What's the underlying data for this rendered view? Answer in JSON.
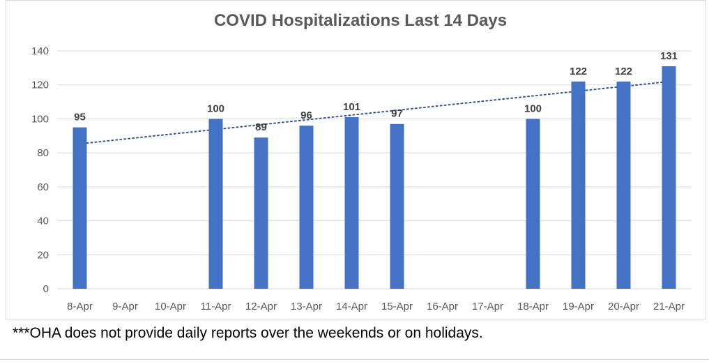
{
  "chart_data": {
    "type": "bar",
    "title": "COVID Hospitalizations Last 14 Days",
    "categories": [
      "8-Apr",
      "9-Apr",
      "10-Apr",
      "11-Apr",
      "12-Apr",
      "13-Apr",
      "14-Apr",
      "15-Apr",
      "16-Apr",
      "17-Apr",
      "18-Apr",
      "19-Apr",
      "20-Apr",
      "21-Apr"
    ],
    "series": [
      {
        "name": "Hospitalizations",
        "values": [
          95,
          null,
          null,
          100,
          89,
          96,
          101,
          97,
          null,
          null,
          100,
          122,
          122,
          131
        ]
      }
    ],
    "ylim": [
      0,
      140
    ],
    "yticks": [
      0,
      20,
      40,
      60,
      80,
      100,
      120,
      140
    ],
    "xlabel": "",
    "ylabel": "",
    "grid": true,
    "trendline": {
      "type": "linear",
      "style": "dotted"
    },
    "colors": {
      "bar": "#4472c4",
      "trend": "#2f5597",
      "grid": "#d9d9d9"
    }
  },
  "footnote": "***OHA does not provide daily reports over the weekends or on holidays."
}
